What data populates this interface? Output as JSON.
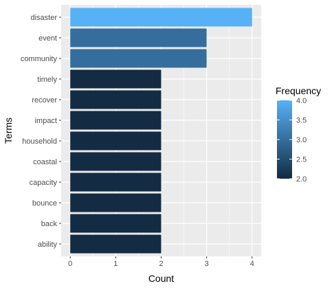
{
  "chart_data": {
    "type": "bar",
    "orientation": "horizontal",
    "categories": [
      "disaster",
      "event",
      "community",
      "timely",
      "recover",
      "impact",
      "household",
      "coastal",
      "capacity",
      "bounce",
      "back",
      "ability"
    ],
    "values": [
      4,
      3,
      3,
      2,
      2,
      2,
      2,
      2,
      2,
      2,
      2,
      2
    ],
    "xlabel": "Count",
    "ylabel": "Terms",
    "xlim": [
      0,
      4
    ],
    "x_ticks": [
      0,
      1,
      2,
      3,
      4
    ],
    "grid": true,
    "legend": {
      "title": "Frequency",
      "position": "right",
      "range": [
        2.0,
        4.0
      ],
      "ticks": [
        "4.0",
        "3.5",
        "3.0",
        "2.5",
        "2.0"
      ],
      "low_color": "#132B43",
      "high_color": "#56B1F7"
    },
    "panel_background": "#EBEBEB",
    "grid_color": "#FFFFFF"
  }
}
